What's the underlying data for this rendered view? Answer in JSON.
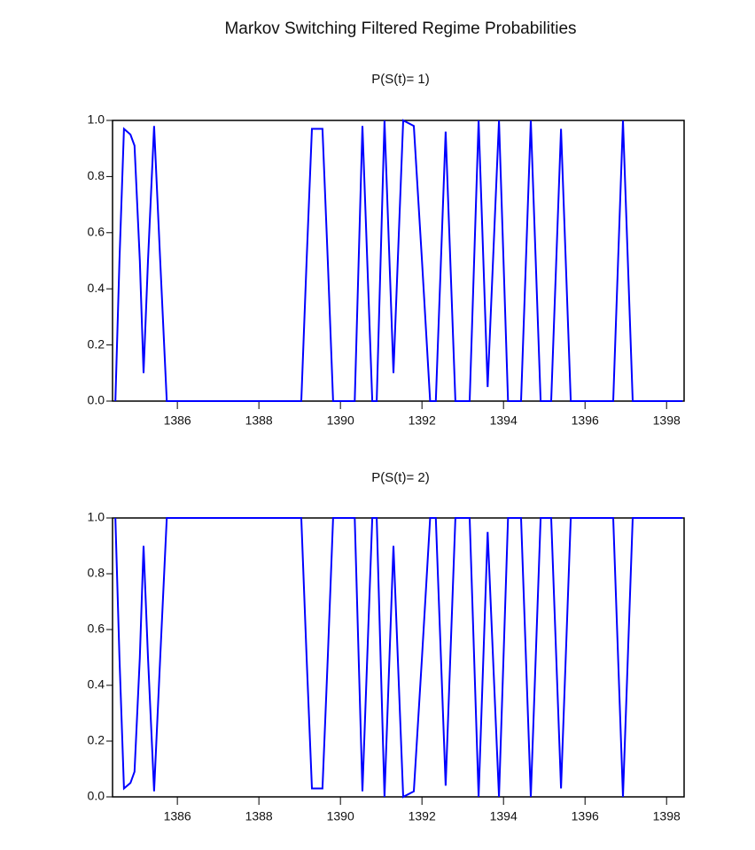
{
  "title": "Markov Switching Filtered Regime Probabilities",
  "chart_data": [
    {
      "type": "line",
      "title": "P(S(t)= 1)",
      "color": "#0000ff",
      "x": [
        1384.48,
        1384.58,
        1384.69,
        1384.85,
        1384.95,
        1385.08,
        1385.17,
        1385.28,
        1385.43,
        1385.58,
        1385.74,
        1389.04,
        1389.17,
        1389.3,
        1389.56,
        1389.69,
        1389.82,
        1390.35,
        1390.54,
        1390.78,
        1390.89,
        1391.08,
        1391.3,
        1391.54,
        1391.8,
        1392.0,
        1392.2,
        1392.34,
        1392.58,
        1392.82,
        1393.17,
        1393.39,
        1393.61,
        1393.89,
        1394.11,
        1394.43,
        1394.67,
        1394.91,
        1395.17,
        1395.41,
        1395.65,
        1396.69,
        1396.93,
        1397.17,
        1398.39
      ],
      "values": [
        0,
        0.5,
        0.97,
        0.95,
        0.91,
        0.5,
        0.1,
        0.5,
        0.98,
        0.5,
        0,
        0,
        0.5,
        0.97,
        0.97,
        0.5,
        0,
        0,
        0.98,
        0,
        0,
        1,
        0.1,
        1,
        0.98,
        0.5,
        0,
        0,
        0.96,
        0,
        0,
        1,
        0.05,
        1,
        0,
        0,
        1,
        0,
        0,
        0.97,
        0,
        0,
        1,
        0,
        0
      ],
      "xlim": [
        1384.41,
        1398.43
      ],
      "xticks": [
        1386,
        1388,
        1390,
        1392,
        1394,
        1396,
        1398
      ],
      "ylim": [
        0,
        1
      ],
      "yticks": [
        {
          "value": 0,
          "label": "0.0"
        },
        {
          "value": 0.2,
          "label": "0.2"
        },
        {
          "value": 0.4,
          "label": "0.4"
        },
        {
          "value": 0.6,
          "label": "0.6"
        },
        {
          "value": 0.8,
          "label": "0.8"
        },
        {
          "value": 1,
          "label": "1.0"
        }
      ]
    },
    {
      "type": "line",
      "title": "P(S(t)= 2)",
      "color": "#0000ff",
      "x": [
        1384.48,
        1384.58,
        1384.69,
        1384.85,
        1384.95,
        1385.08,
        1385.17,
        1385.28,
        1385.43,
        1385.58,
        1385.74,
        1389.04,
        1389.17,
        1389.3,
        1389.56,
        1389.69,
        1389.82,
        1390.35,
        1390.54,
        1390.78,
        1390.89,
        1391.08,
        1391.3,
        1391.54,
        1391.8,
        1392.0,
        1392.2,
        1392.34,
        1392.58,
        1392.82,
        1393.17,
        1393.39,
        1393.61,
        1393.89,
        1394.11,
        1394.43,
        1394.67,
        1394.91,
        1395.17,
        1395.41,
        1395.65,
        1396.69,
        1396.93,
        1397.17,
        1398.39
      ],
      "values": [
        1,
        0.5,
        0.03,
        0.05,
        0.09,
        0.5,
        0.9,
        0.5,
        0.02,
        0.5,
        1,
        1,
        0.5,
        0.03,
        0.03,
        0.5,
        1,
        1,
        0.02,
        1,
        1,
        0,
        0.9,
        0,
        0.02,
        0.5,
        1,
        1,
        0.04,
        1,
        1,
        0,
        0.95,
        0,
        1,
        1,
        0,
        1,
        1,
        0.03,
        1,
        1,
        0,
        1,
        1
      ],
      "xlim": [
        1384.41,
        1398.43
      ],
      "xticks": [
        1386,
        1388,
        1390,
        1392,
        1394,
        1396,
        1398
      ],
      "ylim": [
        0,
        1
      ],
      "yticks": [
        {
          "value": 0,
          "label": "0.0"
        },
        {
          "value": 0.2,
          "label": "0.2"
        },
        {
          "value": 0.4,
          "label": "0.4"
        },
        {
          "value": 0.6,
          "label": "0.6"
        },
        {
          "value": 0.8,
          "label": "0.8"
        },
        {
          "value": 1,
          "label": "1.0"
        }
      ]
    }
  ]
}
